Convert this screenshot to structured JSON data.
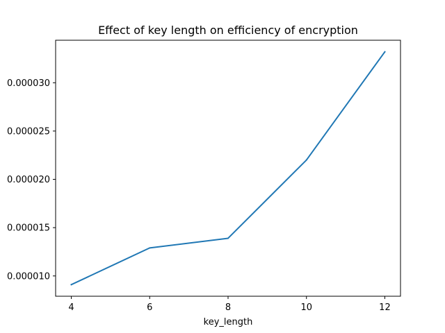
{
  "chart_data": {
    "type": "line",
    "title": "Effect of key length on efficiency of encryption",
    "xlabel": "key_length",
    "ylabel": "",
    "x": [
      4,
      6,
      8,
      10,
      12
    ],
    "series": [
      {
        "values": [
          9.1e-06,
          1.29e-05,
          1.39e-05,
          2.2e-05,
          3.32e-05
        ],
        "color": "#1f77b4"
      }
    ],
    "xlim": [
      3.6,
      12.4
    ],
    "ylim": [
      7.9e-06,
      3.44e-05
    ],
    "xticks": [
      4,
      6,
      8,
      10,
      12
    ],
    "xtick_labels": [
      "4",
      "6",
      "8",
      "10",
      "12"
    ],
    "yticks": [
      1e-05,
      1.5e-05,
      2e-05,
      2.5e-05,
      3e-05
    ],
    "ytick_labels": [
      "0.000010",
      "0.000015",
      "0.000020",
      "0.000025",
      "0.000030"
    ],
    "grid": false,
    "legend": "none"
  }
}
